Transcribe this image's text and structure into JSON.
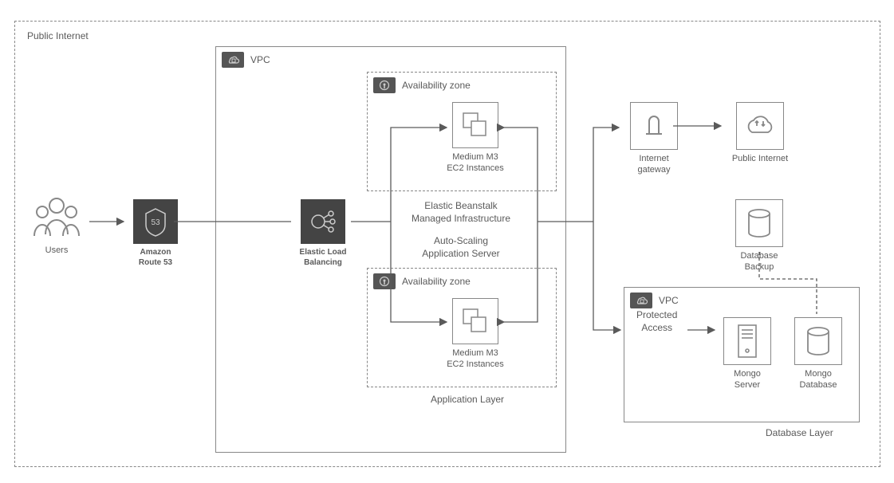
{
  "colors": {
    "line": "#5a5a5a",
    "border": "#888888",
    "dark_bg": "#444444",
    "text": "#5a5a5a",
    "bg": "#ffffff"
  },
  "public_internet": {
    "label": "Public Internet"
  },
  "users": {
    "label": "Users"
  },
  "route53": {
    "label": "Amazon\nRoute 53"
  },
  "vpc1": {
    "label": "VPC"
  },
  "elb": {
    "label": "Elastic Load\nBalancing"
  },
  "az1": {
    "label": "Availability zone"
  },
  "az2": {
    "label": "Availability zone"
  },
  "ec2_1": {
    "label": "Medium M3\nEC2 Instances"
  },
  "ec2_2": {
    "label": "Medium M3\nEC2 Instances"
  },
  "beanstalk": {
    "label": "Elastic Beanstalk\nManaged Infrastructure"
  },
  "autoscale": {
    "label": "Auto-Scaling\nApplication Server"
  },
  "app_layer": {
    "label": "Application Layer"
  },
  "igw": {
    "label": "Internet\ngateway"
  },
  "pub_net": {
    "label": "Public Internet"
  },
  "db_backup": {
    "label": "Database\nBackup"
  },
  "vpc2": {
    "label": "VPC"
  },
  "protected": {
    "label": "Protected\nAccess"
  },
  "mongo_srv": {
    "label": "Mongo\nServer"
  },
  "mongo_db": {
    "label": "Mongo\nDatabase"
  },
  "db_layer": {
    "label": "Database Layer"
  }
}
